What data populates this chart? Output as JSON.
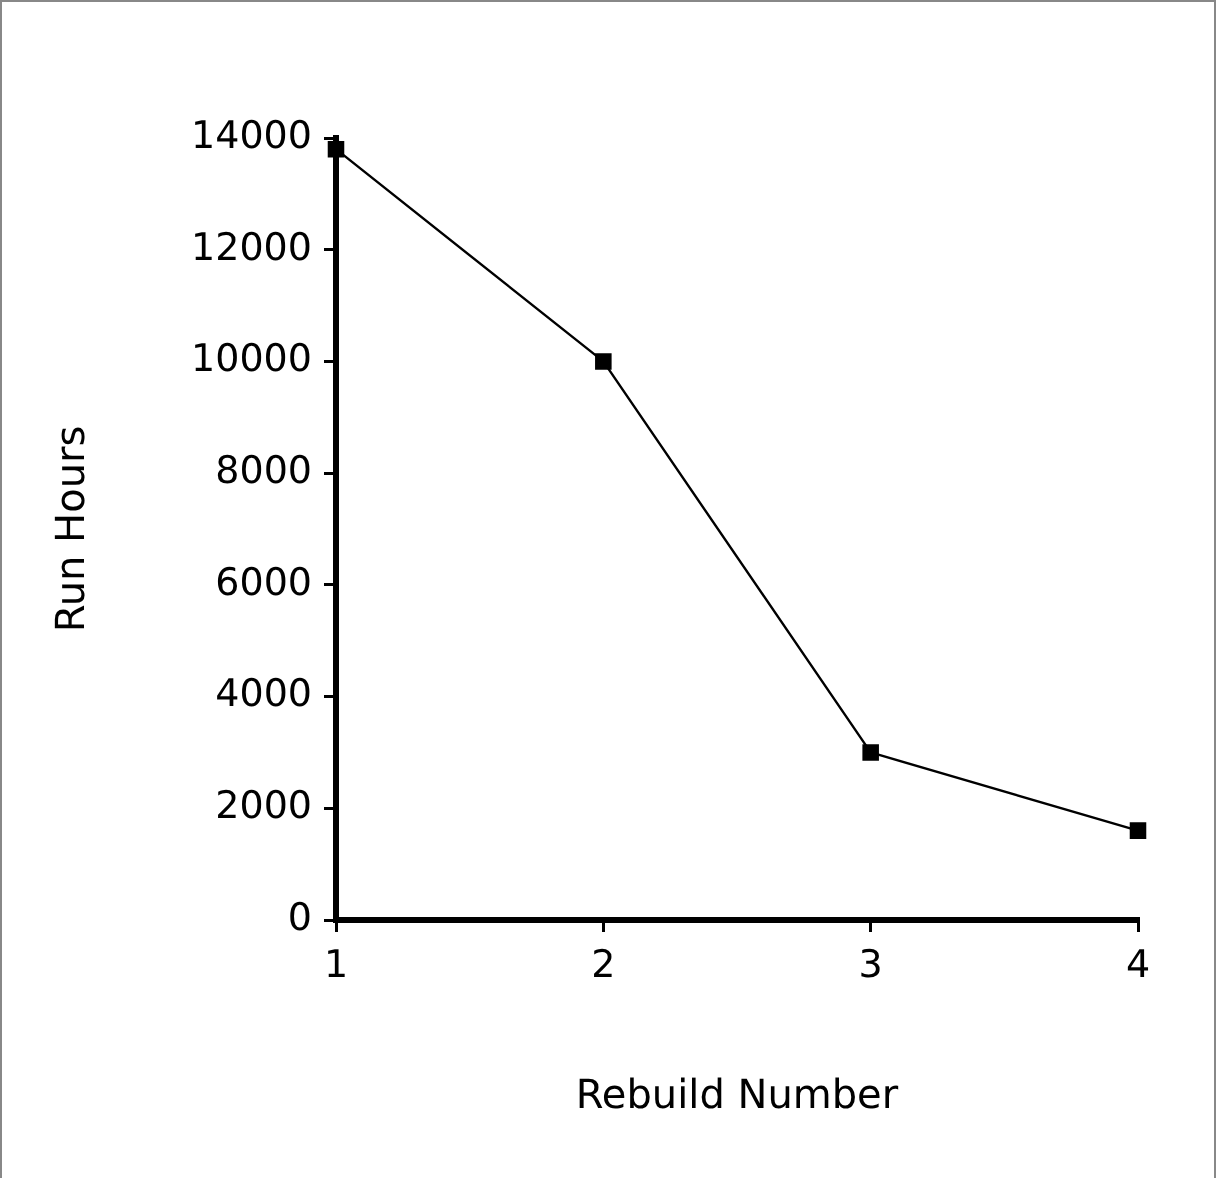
{
  "chart_data": {
    "type": "line",
    "xlabel": "Rebuild Number",
    "ylabel": "Run Hours",
    "x": [
      1,
      2,
      3,
      4
    ],
    "series": [
      {
        "color": "#000000",
        "values": [
          13800,
          10000,
          3000,
          1600
        ]
      }
    ],
    "xlim": [
      1,
      4
    ],
    "xticks": [
      1,
      2,
      3,
      4
    ],
    "ylim": [
      0,
      14000
    ],
    "yticks": [
      0,
      2000,
      4000,
      6000,
      8000,
      10000,
      12000,
      14000
    ],
    "grid": false,
    "legend": false,
    "marker": "square",
    "line_style": "solid"
  }
}
